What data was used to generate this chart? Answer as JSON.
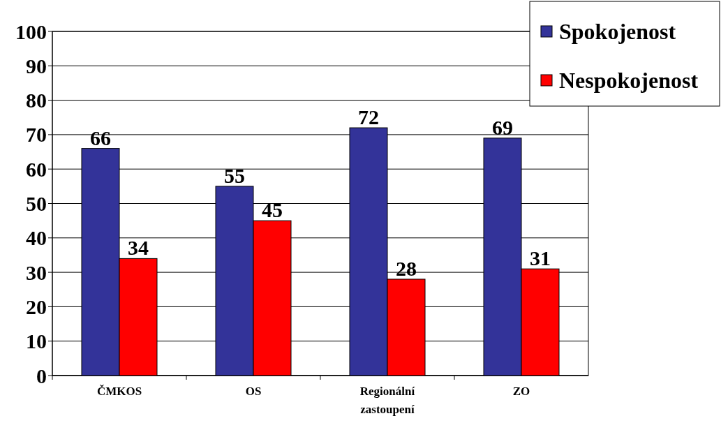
{
  "chart_data": {
    "type": "bar",
    "categories": [
      "ČMKOS",
      "OS",
      "Regionální zastoupení",
      "ZO"
    ],
    "series": [
      {
        "name": "Spokojenost",
        "color": "#333399",
        "values": [
          66,
          55,
          72,
          69
        ]
      },
      {
        "name": "Nespokojenost",
        "color": "#ff0000",
        "values": [
          34,
          45,
          28,
          31
        ]
      }
    ],
    "ylim": [
      0,
      100
    ],
    "yticks": [
      0,
      10,
      20,
      30,
      40,
      50,
      60,
      70,
      80,
      90,
      100
    ],
    "grid": "y",
    "legend": "top right",
    "data_labels": true
  }
}
